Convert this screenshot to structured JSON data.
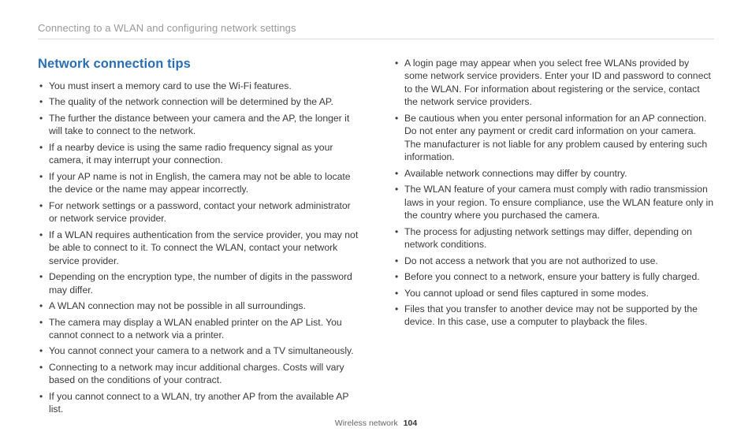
{
  "colors": {
    "title": "#2a6fb5",
    "breadcrumb": "#9a9a9a",
    "body_text": "#3a3a3a",
    "divider": "#dcdcdc",
    "footer_text": "#666666",
    "background": "#ffffff"
  },
  "typography": {
    "breadcrumb_fontsize": 13,
    "title_fontsize": 16.5,
    "body_fontsize": 12.2,
    "footer_fontsize": 10.5,
    "title_weight": 600
  },
  "header": {
    "breadcrumb": "Connecting to a WLAN and configuring network settings"
  },
  "section": {
    "title": "Network connection tips"
  },
  "left_column": {
    "items": [
      "You must insert a memory card to use the Wi-Fi features.",
      "The quality of the network connection will be determined by the AP.",
      "The further the distance between your camera and the AP, the longer it will take to connect to the network.",
      "If a nearby device is using the same radio frequency signal as your camera, it may interrupt your connection.",
      "If your AP name is not in English, the camera may not be able to locate the device or the name may appear incorrectly.",
      "For network settings or a password, contact your network administrator or network service provider.",
      "If a WLAN requires authentication from the service provider, you may not be able to connect to it. To connect the WLAN, contact your network service provider.",
      "Depending on the encryption type, the number of digits in the password may differ.",
      "A WLAN connection may not be possible in all surroundings.",
      "The camera may display a WLAN enabled printer on the AP List. You cannot connect to a network via a printer.",
      "You cannot connect your camera to a network and a TV simultaneously.",
      "Connecting to a network may incur additional charges. Costs will vary based on the conditions of your contract.",
      "If you cannot connect to a WLAN, try another AP from the available AP list."
    ]
  },
  "right_column": {
    "items": [
      "A login page may appear when you select free WLANs provided by some network service providers. Enter your ID and password to connect to the WLAN. For information about registering or the service, contact the network service providers.",
      "Be cautious when you enter personal information for an AP connection. Do not enter any payment or credit card information on your camera. The manufacturer is not liable for any problem caused by entering such information.",
      "Available network connections may differ by country.",
      "The WLAN feature of your camera must comply with radio transmission laws in your region. To ensure compliance, use the WLAN feature only in the country where you purchased the camera.",
      "The process for adjusting network settings may differ, depending on network conditions.",
      "Do not access a network that you are not authorized to use.",
      "Before you connect to a network, ensure your battery is fully charged.",
      "You cannot upload or send files captured in some modes.",
      "Files that you transfer to another device may not be supported by the device. In this case, use a computer to playback the files."
    ]
  },
  "footer": {
    "label": "Wireless network",
    "page_number": "104"
  }
}
